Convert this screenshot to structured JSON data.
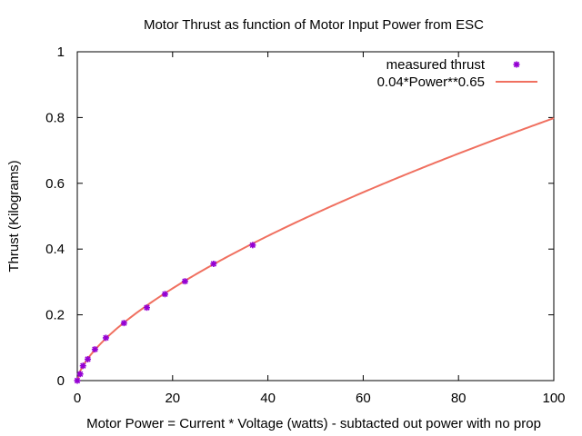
{
  "chart_data": {
    "type": "scatter",
    "title": "Motor Thrust as function of Motor Input Power from ESC",
    "xlabel": "Motor Power = Current * Voltage (watts) - subtacted out power with no prop",
    "ylabel": "Thrust (Kilograms)",
    "xlim": [
      0,
      100
    ],
    "ylim": [
      0,
      1
    ],
    "xticks": [
      "0",
      "20",
      "40",
      "60",
      "80",
      "100"
    ],
    "yticks": [
      "0",
      "0.2",
      "0.4",
      "0.6",
      "0.8",
      "1"
    ],
    "grid": false,
    "legend_position": "top-right",
    "series": [
      {
        "name": "measured thrust",
        "kind": "points",
        "color": "#9400d3",
        "points": [
          {
            "x": 0.0,
            "y": 0.0
          },
          {
            "x": 0.6,
            "y": 0.02
          },
          {
            "x": 1.2,
            "y": 0.045
          },
          {
            "x": 2.2,
            "y": 0.065
          },
          {
            "x": 3.7,
            "y": 0.095
          },
          {
            "x": 6.0,
            "y": 0.13
          },
          {
            "x": 9.8,
            "y": 0.175
          },
          {
            "x": 14.6,
            "y": 0.222
          },
          {
            "x": 18.4,
            "y": 0.263
          },
          {
            "x": 22.6,
            "y": 0.302
          },
          {
            "x": 28.6,
            "y": 0.355
          },
          {
            "x": 36.8,
            "y": 0.412
          }
        ]
      },
      {
        "name": "0.04*Power**0.65",
        "kind": "curve",
        "color": "#f07060",
        "coefficient": 0.04,
        "exponent": 0.65
      }
    ]
  }
}
